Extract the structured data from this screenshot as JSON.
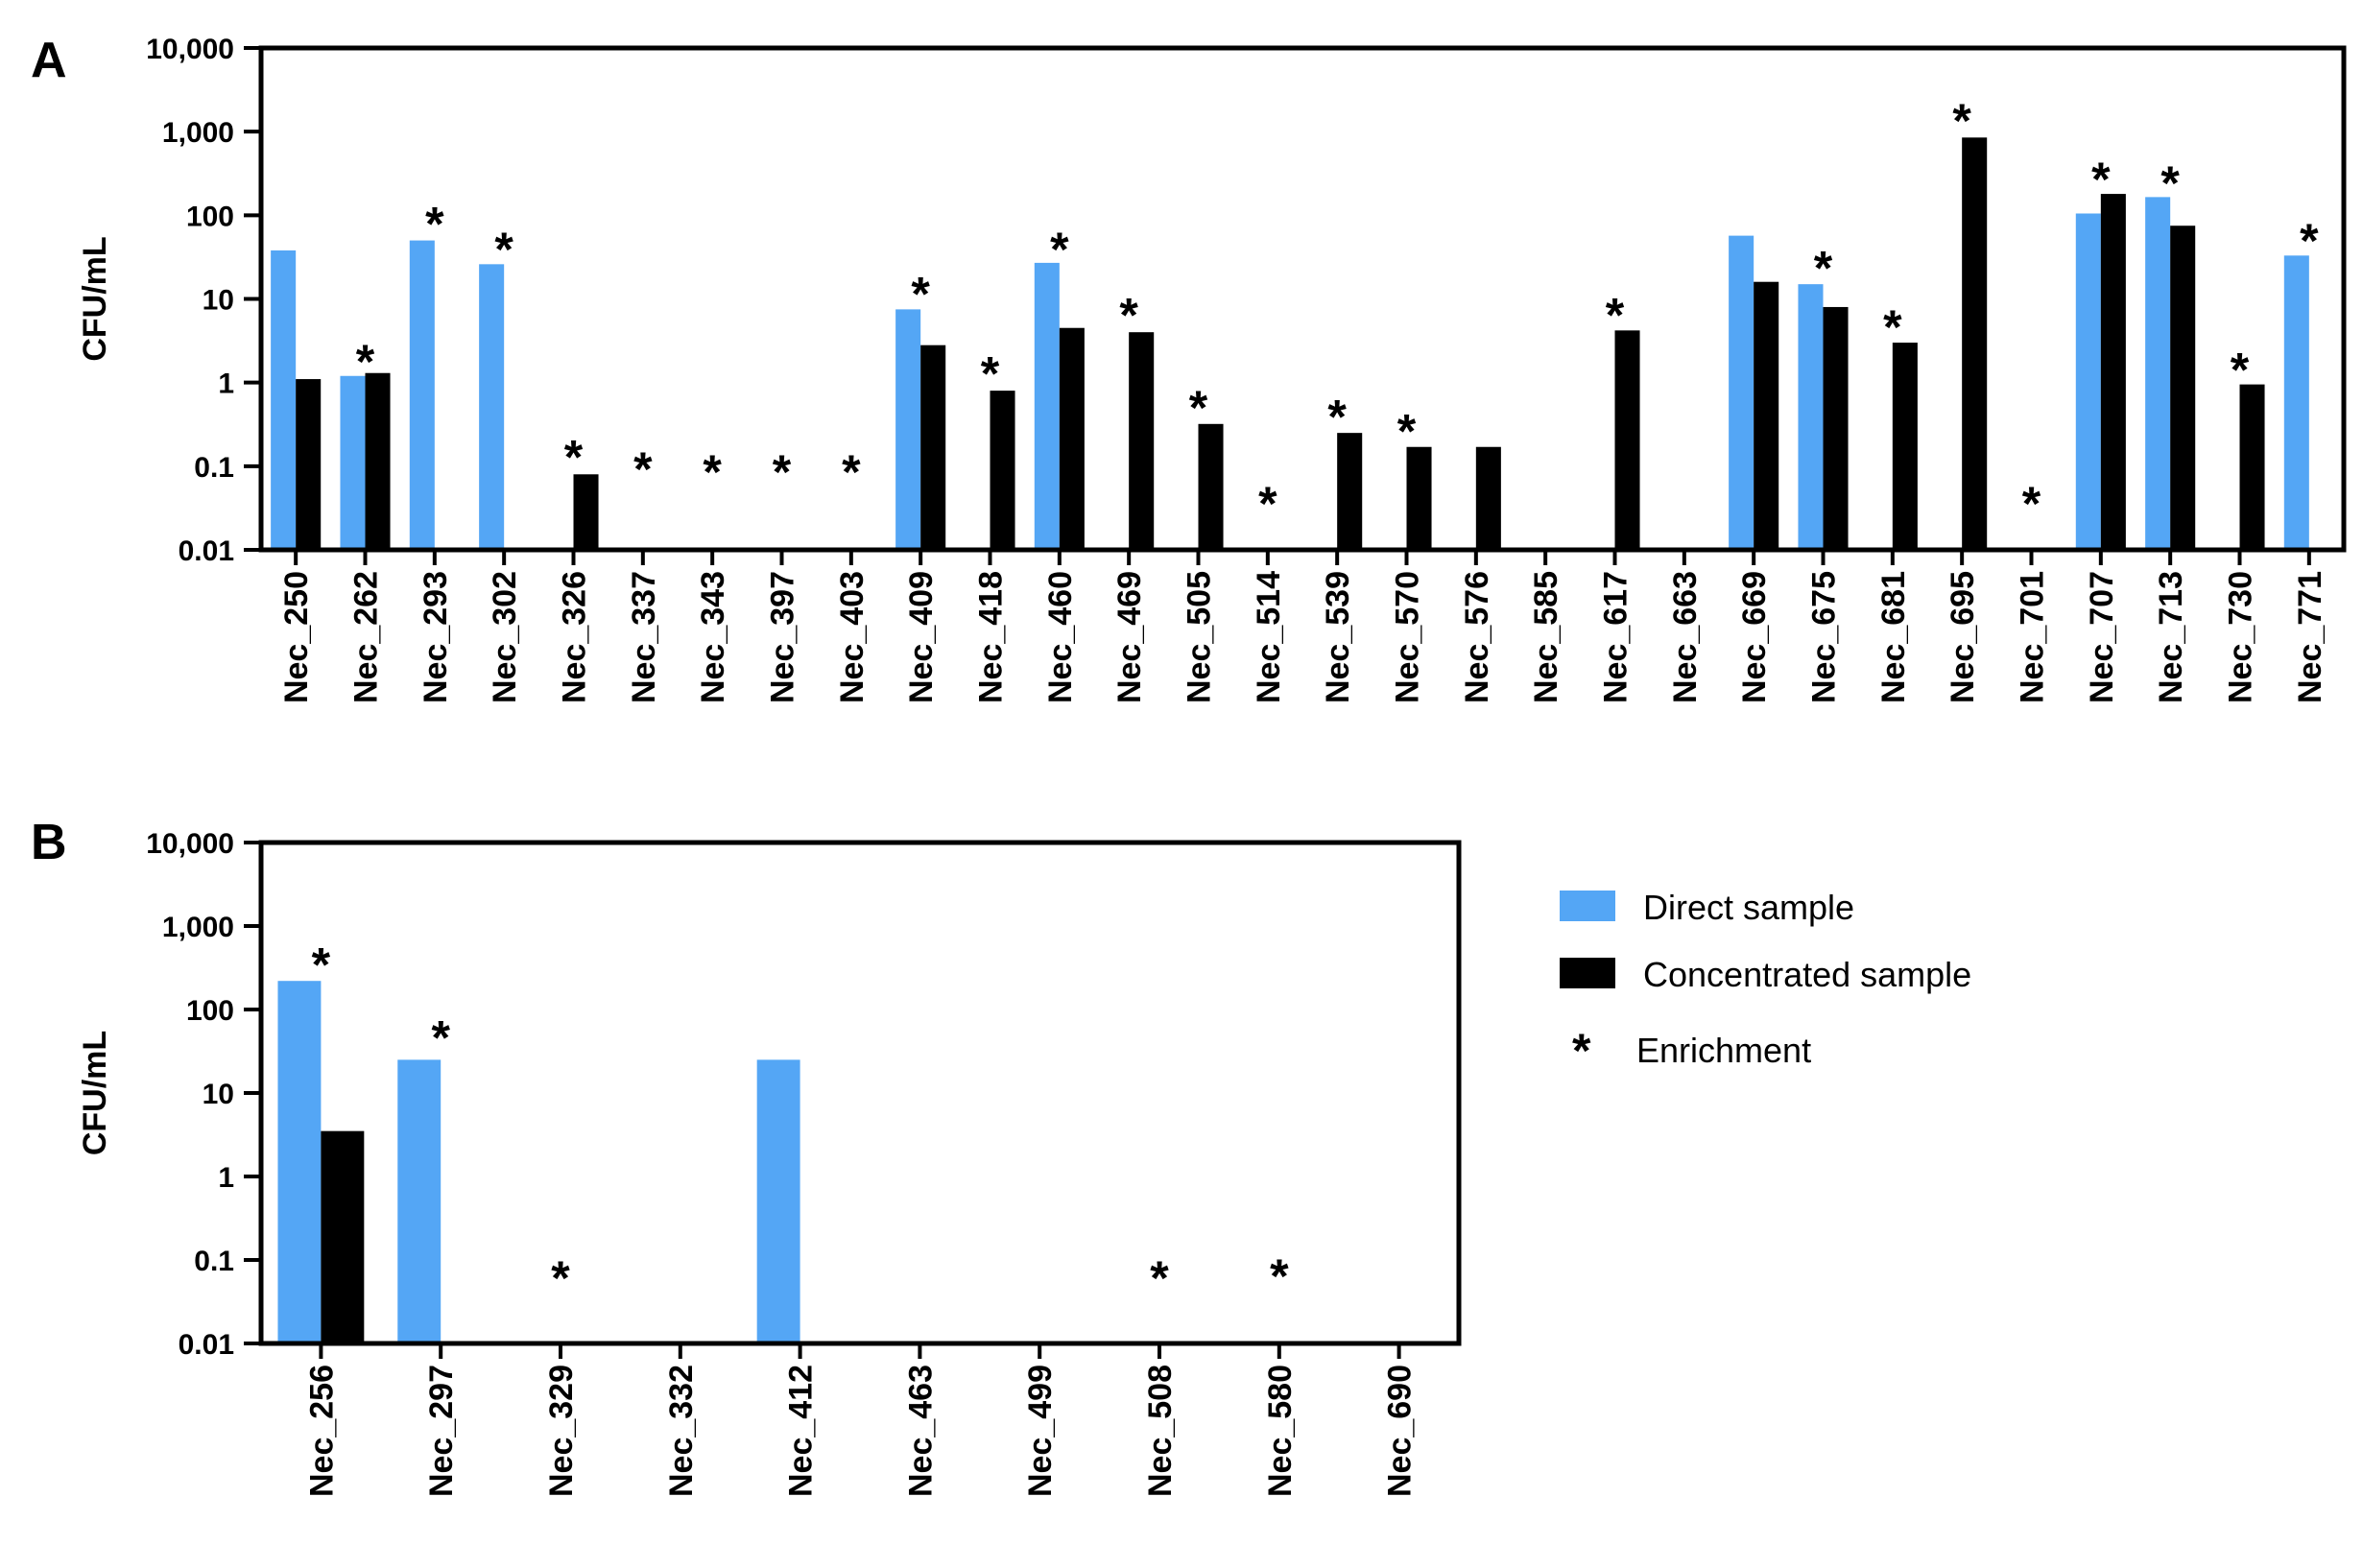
{
  "colors": {
    "direct": "#54a6f5",
    "concentrated": "#000000",
    "axis": "#000000"
  },
  "legend": {
    "direct_label": "Direct sample",
    "concentrated_label": "Concentrated sample",
    "enrichment_symbol": "*",
    "enrichment_label": "Enrichment"
  },
  "chart_data": [
    {
      "panel": "A",
      "type": "bar",
      "scale": "log",
      "ylabel": "CFU/mL",
      "ylim": [
        0.01,
        10000
      ],
      "yticks": [
        0.01,
        0.1,
        1,
        10,
        100,
        1000,
        10000
      ],
      "ytick_labels": [
        "0.01",
        "0.1",
        "1",
        "10",
        "100",
        "1,000",
        "10,000"
      ],
      "categories": [
        "Nec_250",
        "Nec_262",
        "Nec_293",
        "Nec_302",
        "Nec_326",
        "Nec_337",
        "Nec_343",
        "Nec_397",
        "Nec_403",
        "Nec_409",
        "Nec_418",
        "Nec_460",
        "Nec_469",
        "Nec_505",
        "Nec_514",
        "Nec_539",
        "Nec_570",
        "Nec_576",
        "Nec_585",
        "Nec_617",
        "Nec_663",
        "Nec_669",
        "Nec_675",
        "Nec_681",
        "Nec_695",
        "Nec_701",
        "Nec_707",
        "Nec_713",
        "Nec_730",
        "Nec_771"
      ],
      "series": [
        {
          "name": "Direct sample",
          "values": [
            38,
            1.2,
            50,
            26,
            null,
            null,
            null,
            null,
            null,
            7.5,
            null,
            27,
            null,
            null,
            null,
            null,
            null,
            null,
            null,
            null,
            null,
            57,
            15,
            null,
            null,
            null,
            105,
            165,
            null,
            33
          ]
        },
        {
          "name": "Concentrated sample",
          "values": [
            1.1,
            1.3,
            null,
            null,
            0.08,
            null,
            null,
            null,
            null,
            2.8,
            0.8,
            4.5,
            4,
            0.32,
            null,
            0.25,
            0.17,
            0.17,
            null,
            4.2,
            null,
            16,
            8,
            3,
            850,
            null,
            180,
            75,
            0.95,
            null
          ]
        }
      ],
      "enrichment": [
        false,
        true,
        true,
        true,
        true,
        true,
        true,
        true,
        true,
        true,
        true,
        true,
        true,
        true,
        true,
        true,
        true,
        false,
        false,
        true,
        false,
        false,
        true,
        true,
        true,
        true,
        true,
        true,
        true,
        true
      ],
      "enrichment_level": [
        null,
        2.5,
        110,
        55,
        0.18,
        0.13,
        0.12,
        0.12,
        0.12,
        16,
        1.8,
        55,
        9,
        0.7,
        0.05,
        0.55,
        0.37,
        null,
        null,
        9,
        null,
        null,
        33,
        6.5,
        1900,
        0.05,
        380,
        340,
        2,
        70
      ]
    },
    {
      "panel": "B",
      "type": "bar",
      "scale": "log",
      "ylabel": "CFU/mL",
      "ylim": [
        0.01,
        10000
      ],
      "yticks": [
        0.01,
        0.1,
        1,
        10,
        100,
        1000,
        10000
      ],
      "ytick_labels": [
        "0.01",
        "0.1",
        "1",
        "10",
        "100",
        "1,000",
        "10,000"
      ],
      "categories": [
        "Nec_256",
        "Nec_297",
        "Nec_329",
        "Nec_332",
        "Nec_412",
        "Nec_463",
        "Nec_499",
        "Nec_508",
        "Nec_580",
        "Nec_690"
      ],
      "series": [
        {
          "name": "Direct sample",
          "values": [
            220,
            25,
            null,
            null,
            25,
            null,
            null,
            null,
            null,
            null
          ]
        },
        {
          "name": "Concentrated sample",
          "values": [
            3.5,
            null,
            null,
            null,
            null,
            null,
            null,
            null,
            null,
            null
          ]
        }
      ],
      "enrichment": [
        true,
        true,
        true,
        false,
        false,
        false,
        false,
        true,
        true,
        false
      ],
      "enrichment_level": [
        480,
        65,
        0.085,
        null,
        null,
        null,
        null,
        0.085,
        0.09,
        null
      ]
    }
  ]
}
